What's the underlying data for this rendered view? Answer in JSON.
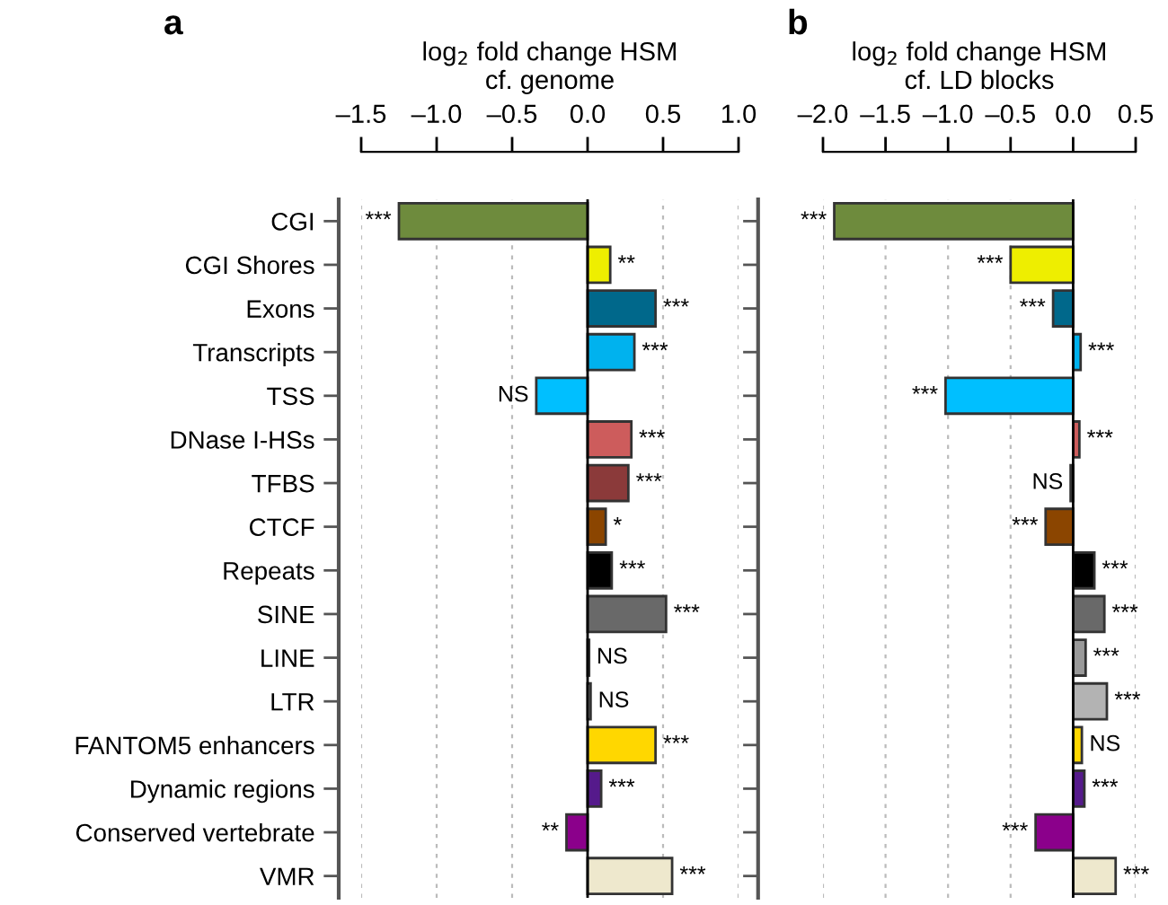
{
  "chart_data": [
    {
      "type": "bar",
      "orientation": "horizontal",
      "title": "a",
      "xlabel": "log$_{2}$ fold change HSM\ncf. genome",
      "categories": [
        "CGI",
        "CGI Shores",
        "Exons",
        "Transcripts",
        "TSS",
        "DNase I-HSs",
        "TFBS",
        "CTCF",
        "Repeats",
        "SINE",
        "LINE",
        "LTR",
        "FANTOM5 enhancers",
        "Dynamic regions",
        "Conserved vertebrate",
        "VMR"
      ],
      "values": [
        -1.25,
        0.15,
        0.45,
        0.31,
        -0.34,
        0.29,
        0.27,
        0.12,
        0.16,
        0.52,
        0.01,
        0.02,
        0.45,
        0.09,
        -0.14,
        0.56
      ],
      "value_labels": [
        "***",
        "**",
        "***",
        "***",
        "NS",
        "***",
        "***",
        "*",
        "***",
        "***",
        "NS",
        "NS",
        "***",
        "***",
        "**",
        "***"
      ],
      "colors": [
        "#6e8b3d",
        "#eeee00",
        "#00688b",
        "#00b2ee",
        "#00bfff",
        "#cd5c5c",
        "#8b3a3a",
        "#8b4500",
        "#000000",
        "#696969",
        "#999999",
        "#b3b3b3",
        "#ffd700",
        "#551a8b",
        "#8b008b",
        "#eee8cd"
      ],
      "xlim": [
        -1.5,
        1.0
      ],
      "xticks": [
        {
          "value": -1.5,
          "label": "–1.5"
        },
        {
          "value": -1.0,
          "label": "–1.0"
        },
        {
          "value": -0.5,
          "label": "–0.5"
        },
        {
          "value": 0.0,
          "label": "0.0"
        },
        {
          "value": 0.5,
          "label": "0.5"
        },
        {
          "value": 1.0,
          "label": "1.0"
        }
      ],
      "grid": "x",
      "legend": false
    },
    {
      "type": "bar",
      "orientation": "horizontal",
      "title": "b",
      "xlabel": "log$_{2}$ fold change HSM\ncf. LD blocks",
      "categories": [
        null,
        null,
        null,
        null,
        null,
        null,
        null,
        null,
        null,
        null,
        null,
        null,
        null,
        null,
        null,
        null
      ],
      "values": [
        -1.91,
        -0.5,
        -0.16,
        0.06,
        -1.02,
        0.05,
        -0.02,
        -0.22,
        0.17,
        0.25,
        0.1,
        0.27,
        0.07,
        0.09,
        -0.3,
        0.34
      ],
      "value_labels": [
        "***",
        "***",
        "***",
        "***",
        "***",
        "***",
        "NS",
        "***",
        "***",
        "***",
        "***",
        "***",
        "NS",
        "***",
        "***",
        "***"
      ],
      "colors": [
        "#6e8b3d",
        "#eeee00",
        "#00688b",
        "#00b2ee",
        "#00bfff",
        "#cd5c5c",
        "#8b3a3a",
        "#8b4500",
        "#000000",
        "#696969",
        "#999999",
        "#b3b3b3",
        "#ffd700",
        "#551a8b",
        "#8b008b",
        "#eee8cd"
      ],
      "xlim": [
        -2.0,
        0.5
      ],
      "xticks": [
        {
          "value": -2.0,
          "label": "–2.0"
        },
        {
          "value": -1.5,
          "label": "–1.5"
        },
        {
          "value": -1.0,
          "label": "–1.0"
        },
        {
          "value": -0.5,
          "label": "–0.5"
        },
        {
          "value": 0.0,
          "label": "0.0"
        },
        {
          "value": 0.5,
          "label": "0.5"
        }
      ],
      "grid": "x",
      "legend": false,
      "tick_labels": "x"
    }
  ]
}
